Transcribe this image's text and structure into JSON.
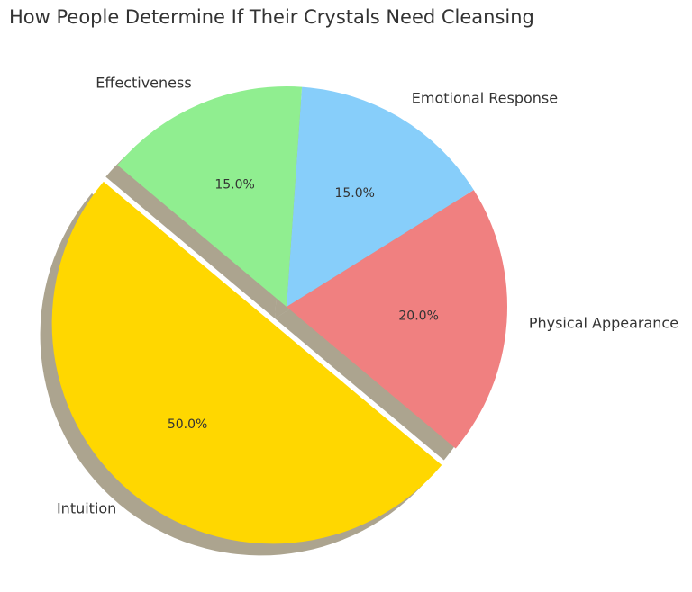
{
  "chart_data": {
    "type": "pie",
    "title": "How People Determine If Their Crystals Need Cleansing",
    "categories": [
      "Intuition",
      "Physical Appearance",
      "Emotional Response",
      "Effectiveness"
    ],
    "values": [
      50,
      20,
      15,
      15
    ],
    "value_labels": [
      "50.0%",
      "20.0%",
      "15.0%",
      "15.0%"
    ],
    "colors": [
      "#ffd700",
      "#f08080",
      "#87cefa",
      "#90ee90"
    ],
    "shadow": true
  }
}
